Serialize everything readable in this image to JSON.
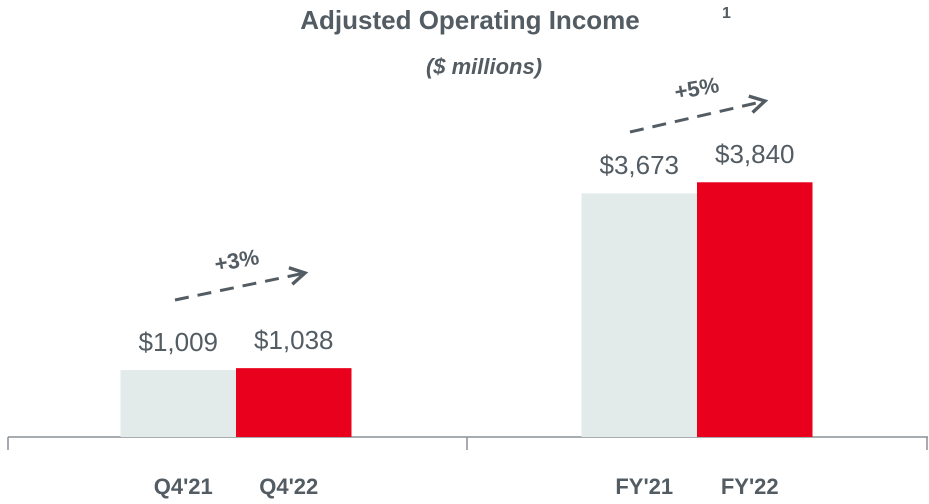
{
  "chart_data": {
    "type": "bar",
    "title": "Adjusted Operating Income",
    "title_superscript": "1",
    "subtitle": "($ millions)",
    "categories": [
      "Q4'21",
      "Q4'22",
      "FY'21",
      "FY'22"
    ],
    "values": [
      1009,
      1038,
      3673,
      3840
    ],
    "value_labels": [
      "$1,009",
      "$1,038",
      "$3,673",
      "$3,840"
    ],
    "colors": [
      "#e3eaea",
      "#e8001c",
      "#e3eaea",
      "#e8001c"
    ],
    "ylim": [
      0,
      6000
    ],
    "annotations": [
      "+3%",
      "+5%"
    ]
  }
}
